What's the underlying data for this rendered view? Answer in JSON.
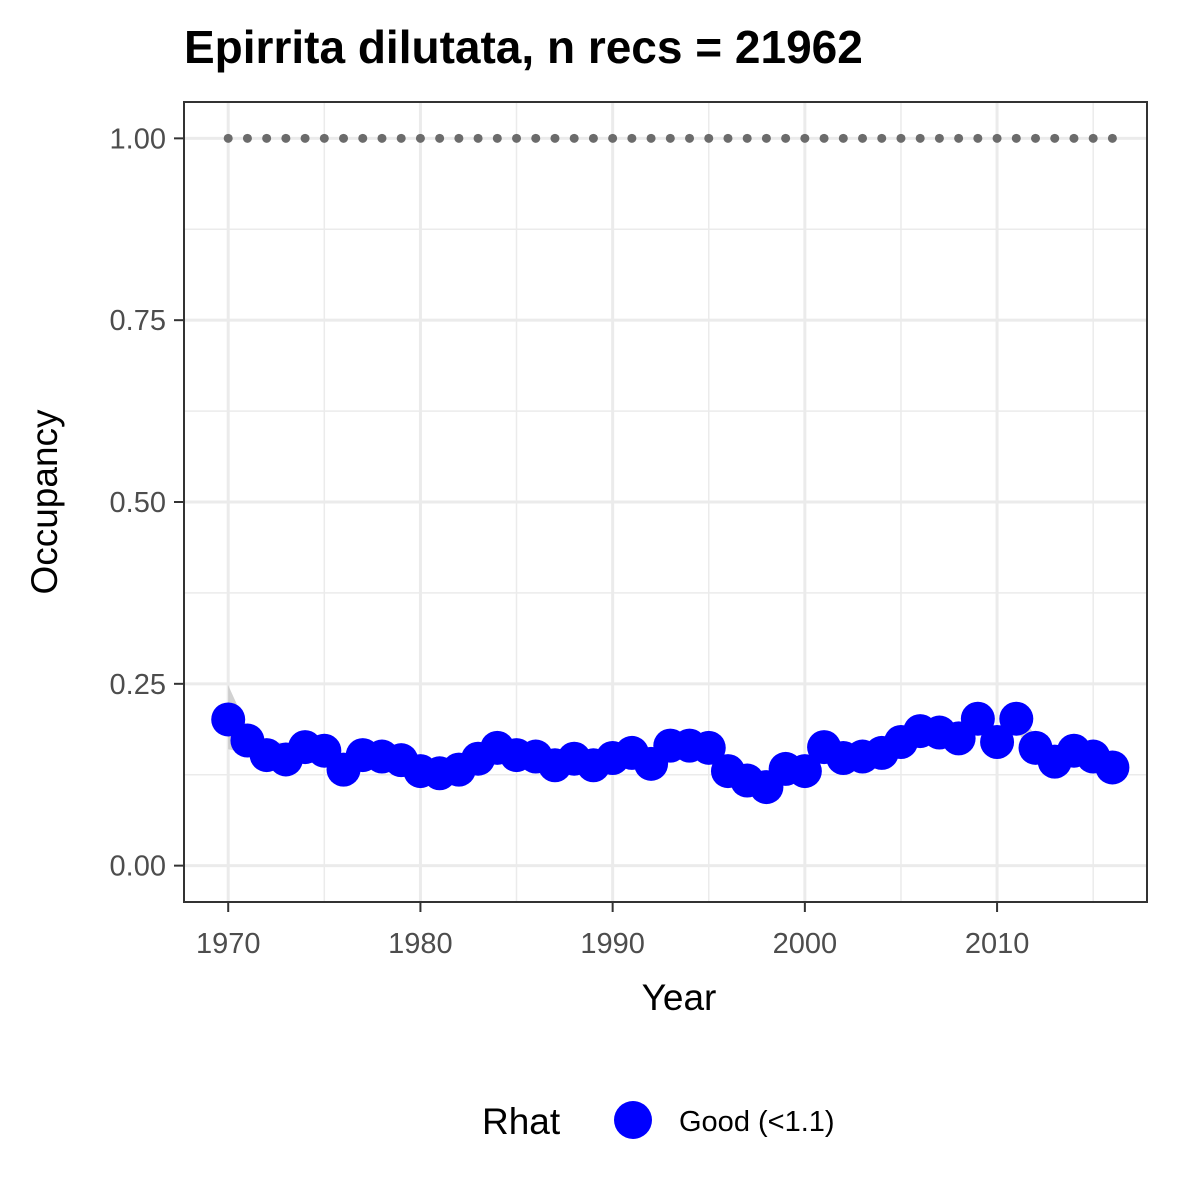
{
  "chart_data": {
    "type": "scatter",
    "title": "Epirrita dilutata, n recs = 21962",
    "xlabel": "Year",
    "ylabel": "Occupancy",
    "xlim": [
      1967.7,
      2017.8
    ],
    "ylim": [
      -0.05,
      1.05
    ],
    "x_ticks": [
      1970,
      1980,
      1990,
      2000,
      2010
    ],
    "x_tick_labels": [
      "1970",
      "1980",
      "1990",
      "2000",
      "2010"
    ],
    "y_ticks": [
      0,
      0.25,
      0.5,
      0.75,
      1.0
    ],
    "y_tick_labels": [
      "0.00",
      "0.25",
      "0.50",
      "0.75",
      "1.00"
    ],
    "grid": true,
    "legend": {
      "position": "bottom",
      "title": "Rhat",
      "entries": [
        {
          "label": "Good (<1.1)",
          "color": "#0000ff"
        }
      ]
    },
    "x": [
      1970,
      1971,
      1972,
      1973,
      1974,
      1975,
      1976,
      1977,
      1978,
      1979,
      1980,
      1981,
      1982,
      1983,
      1984,
      1985,
      1986,
      1987,
      1988,
      1989,
      1990,
      1991,
      1992,
      1993,
      1994,
      1995,
      1996,
      1997,
      1998,
      1999,
      2000,
      2001,
      2002,
      2003,
      2004,
      2005,
      2006,
      2007,
      2008,
      2009,
      2010,
      2011,
      2012,
      2013,
      2014,
      2015,
      2016
    ],
    "series": [
      {
        "name": "Good (<1.1)",
        "color": "#0000ff",
        "values": [
          0.201,
          0.172,
          0.152,
          0.146,
          0.163,
          0.158,
          0.132,
          0.152,
          0.15,
          0.145,
          0.13,
          0.127,
          0.132,
          0.147,
          0.162,
          0.152,
          0.15,
          0.138,
          0.147,
          0.138,
          0.148,
          0.155,
          0.14,
          0.165,
          0.165,
          0.162,
          0.13,
          0.117,
          0.108,
          0.133,
          0.13,
          0.163,
          0.148,
          0.15,
          0.155,
          0.17,
          0.185,
          0.183,
          0.175,
          0.202,
          0.17,
          0.202,
          0.162,
          0.143,
          0.158,
          0.15,
          0.135
        ]
      }
    ],
    "ci_upper": [
      0.248,
      0.19,
      0.172,
      0.168,
      0.178,
      0.172,
      0.15,
      0.168,
      0.165,
      0.162,
      0.148,
      0.145,
      0.15,
      0.163,
      0.175,
      0.167,
      0.164,
      0.153,
      0.16,
      0.153,
      0.162,
      0.17,
      0.156,
      0.18,
      0.18,
      0.177,
      0.145,
      0.132,
      0.124,
      0.15,
      0.146,
      0.178,
      0.163,
      0.165,
      0.17,
      0.185,
      0.2,
      0.198,
      0.19,
      0.217,
      0.187,
      0.217,
      0.178,
      0.16,
      0.173,
      0.165,
      0.151
    ],
    "ci_lower": [
      0.16,
      0.155,
      0.136,
      0.128,
      0.148,
      0.143,
      0.116,
      0.136,
      0.135,
      0.128,
      0.113,
      0.11,
      0.115,
      0.131,
      0.148,
      0.138,
      0.136,
      0.124,
      0.133,
      0.124,
      0.134,
      0.141,
      0.125,
      0.151,
      0.151,
      0.148,
      0.116,
      0.103,
      0.093,
      0.117,
      0.115,
      0.148,
      0.134,
      0.136,
      0.141,
      0.156,
      0.17,
      0.168,
      0.16,
      0.187,
      0.154,
      0.187,
      0.147,
      0.128,
      0.143,
      0.136,
      0.12
    ],
    "reference_line": {
      "y": 1.0,
      "style": "dotted",
      "color": "#6b6b6b"
    },
    "band_color": "#bebebe",
    "panel_border_color": "#333333",
    "grid_color": "#ebebeb"
  }
}
